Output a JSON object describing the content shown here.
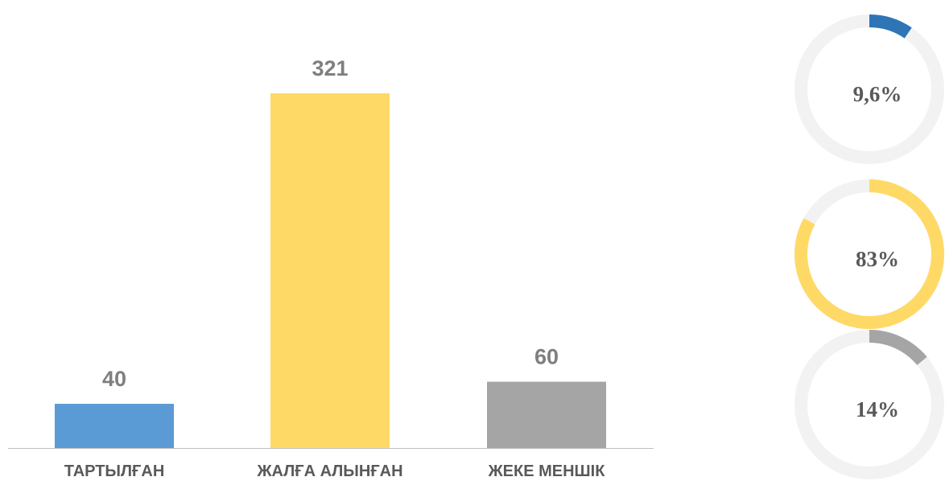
{
  "chart_data": [
    {
      "type": "bar",
      "categories": [
        "ТАРТЫЛҒАН",
        "ЖАЛҒА АЛЫНҒАН",
        "ЖЕКЕ МЕНШІК"
      ],
      "values": [
        40,
        321,
        60
      ],
      "colors": [
        "#5b9bd5",
        "#ffd966",
        "#a5a5a5"
      ]
    },
    {
      "type": "donut",
      "values": [
        9.6
      ],
      "value_labels": [
        "9,6%"
      ],
      "color": "#2e75b6"
    },
    {
      "type": "donut",
      "values": [
        83
      ],
      "value_labels": [
        "83%"
      ],
      "color": "#ffd966"
    },
    {
      "type": "donut",
      "values": [
        14
      ],
      "value_labels": [
        "14%"
      ],
      "color": "#a5a5a5"
    }
  ]
}
